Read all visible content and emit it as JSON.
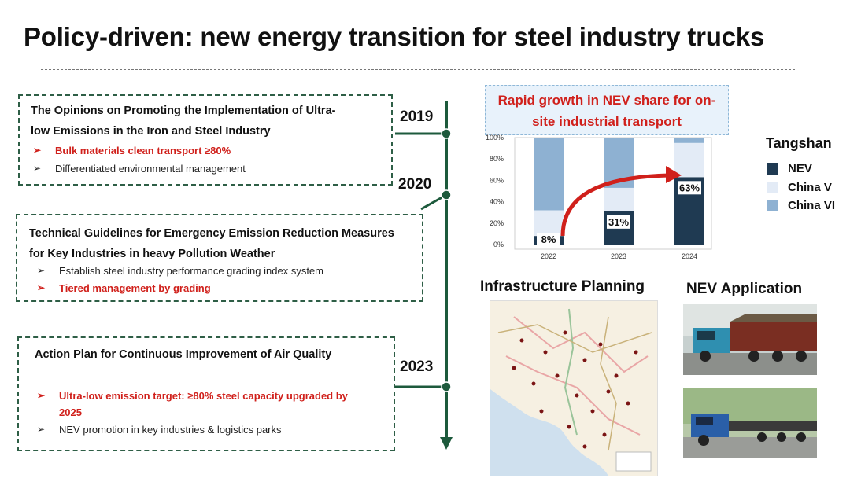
{
  "title": "Policy-driven: new energy transition for steel industry trucks",
  "timeline": [
    {
      "year": "2019",
      "heading": "The Opinions on Promoting the Implementation of Ultra-low Emissions in the Iron and Steel Industry",
      "heading_lines": [
        "The Opinions on Promoting the Implementation of Ultra-",
        "low Emissions in the Iron and Steel Industry"
      ],
      "bullets": [
        {
          "text": "Bulk materials clean transport ≥80%",
          "highlight": true
        },
        {
          "text": "Differentiated environmental management",
          "highlight": false
        }
      ]
    },
    {
      "year": "2020",
      "heading_lines": [
        "Technical Guidelines for Emergency Emission Reduction Measures",
        "for Key Industries in heavy Pollution Weather"
      ],
      "bullets": [
        {
          "text": "Establish steel industry performance grading index system",
          "highlight": false
        },
        {
          "text": "Tiered management by grading",
          "highlight": true
        }
      ]
    },
    {
      "year": "2023",
      "heading_lines": [
        "Action Plan for Continuous Improvement of Air Quality"
      ],
      "bullets": [
        {
          "text_lines": [
            "Ultra-low emission target: ≥80% steel capacity upgraded by",
            "2025"
          ],
          "highlight": true
        },
        {
          "text": "NEV promotion in key industries & logistics parks",
          "highlight": false
        }
      ]
    }
  ],
  "bullet_marker": "➢",
  "chart_data": {
    "type": "bar",
    "stacked": true,
    "title_lines": [
      "Rapid growth in NEV share for on-",
      "site industrial transport"
    ],
    "categories": [
      "2022",
      "2023",
      "2024"
    ],
    "series": [
      {
        "name": "NEV",
        "values": [
          8,
          31,
          63
        ],
        "color": "#1f3a52"
      },
      {
        "name": "China V",
        "values": [
          24,
          22,
          32
        ],
        "color": "#e3ebf6"
      },
      {
        "name": "China VI",
        "values": [
          68,
          47,
          5
        ],
        "color": "#8eb1d2"
      }
    ],
    "data_labels": [
      "8%",
      "31%",
      "63%"
    ],
    "yticks": [
      "0%",
      "20%",
      "40%",
      "60%",
      "80%",
      "100%"
    ],
    "ylim": [
      0,
      100
    ],
    "legend_title": "Tangshan",
    "legend_position": "right",
    "annotation": "red curved arrow showing growth trend"
  },
  "sections": {
    "infrastructure": "Infrastructure Planning",
    "nev_application": "NEV Application"
  }
}
